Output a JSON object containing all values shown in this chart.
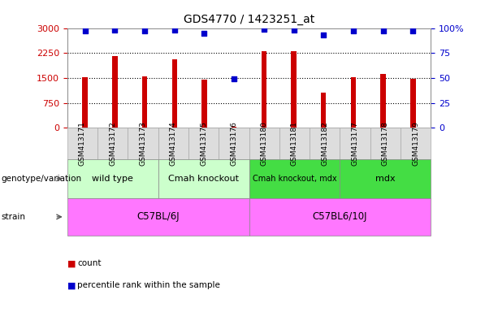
{
  "title": "GDS4770 / 1423251_at",
  "samples": [
    "GSM413171",
    "GSM413172",
    "GSM413173",
    "GSM413174",
    "GSM413175",
    "GSM413176",
    "GSM413180",
    "GSM413181",
    "GSM413182",
    "GSM413177",
    "GSM413178",
    "GSM413179"
  ],
  "counts": [
    1530,
    2150,
    1540,
    2050,
    1450,
    40,
    2300,
    2300,
    1050,
    1520,
    1620,
    1470
  ],
  "percentiles": [
    97,
    98,
    97,
    98,
    95,
    49,
    99,
    98,
    93,
    97,
    97,
    97
  ],
  "ylim_left": [
    0,
    3000
  ],
  "ylim_right": [
    0,
    100
  ],
  "yticks_left": [
    0,
    750,
    1500,
    2250,
    3000
  ],
  "yticks_right": [
    0,
    25,
    50,
    75,
    100
  ],
  "bar_color": "#cc0000",
  "dot_color": "#0000cc",
  "genotype_groups": [
    {
      "label": "wild type",
      "start": 0,
      "end": 3,
      "color": "#ccffcc"
    },
    {
      "label": "Cmah knockout",
      "start": 3,
      "end": 6,
      "color": "#ccffcc"
    },
    {
      "label": "Cmah knockout, mdx",
      "start": 6,
      "end": 9,
      "color": "#44dd44"
    },
    {
      "label": "mdx",
      "start": 9,
      "end": 12,
      "color": "#44dd44"
    }
  ],
  "strain_groups": [
    {
      "label": "C57BL/6J",
      "start": 0,
      "end": 6,
      "color": "#ff77ff"
    },
    {
      "label": "C57BL6/10J",
      "start": 6,
      "end": 12,
      "color": "#ff77ff"
    }
  ],
  "left_label_color": "#cc0000",
  "right_label_color": "#0000cc"
}
